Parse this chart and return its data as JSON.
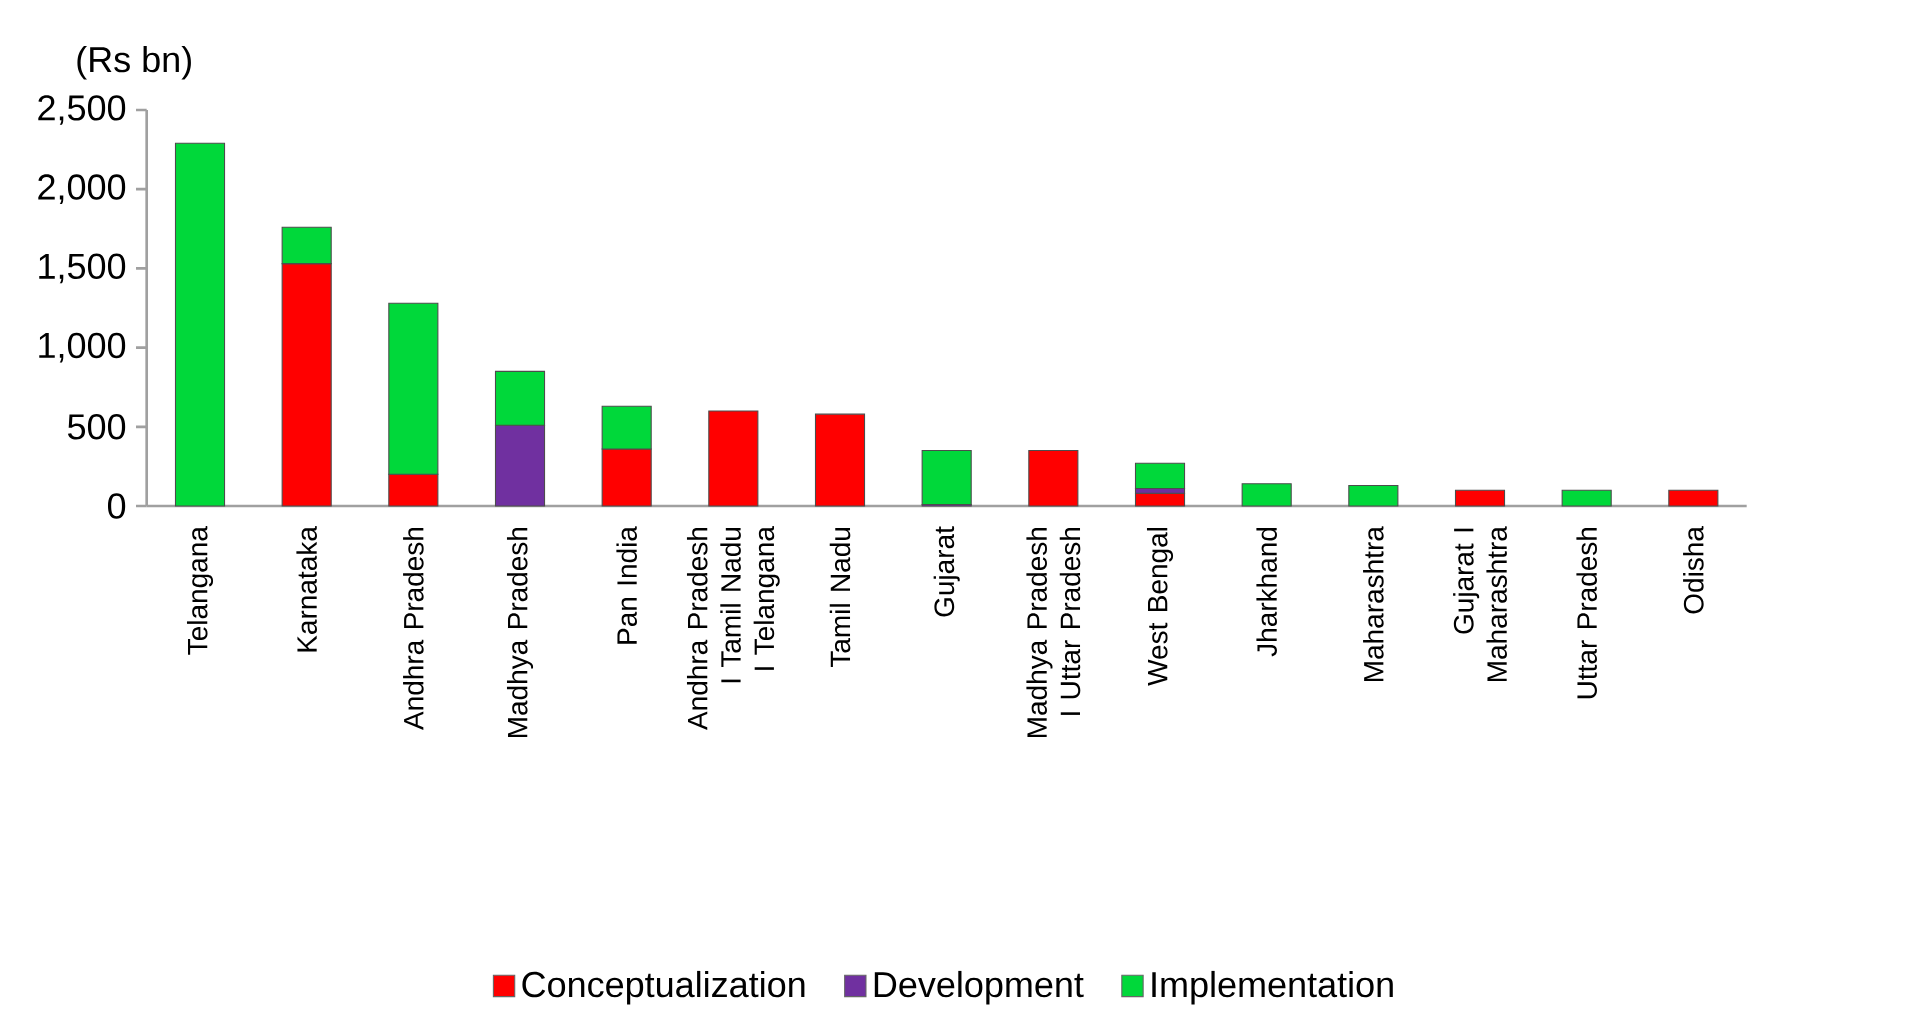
{
  "chart_data": {
    "type": "bar",
    "stacked": true,
    "ylabel": "(Rs bn)",
    "categories": [
      "Telangana",
      "Karnataka",
      "Andhra Pradesh",
      "Madhya Pradesh",
      "Pan India",
      "Andhra Pradesh I Tamil Nadu I Telangana",
      "Tamil Nadu",
      "Gujarat",
      "Madhya Pradesh I Uttar Pradesh",
      "West Bengal",
      "Jharkhand",
      "Maharashtra",
      "Gujarat I Maharashtra",
      "Uttar Pradesh",
      "Odisha"
    ],
    "series": [
      {
        "name": "Conceptualization",
        "color": "#ff0000",
        "values": [
          null,
          1530,
          200,
          null,
          360,
          600,
          580,
          null,
          350,
          80,
          null,
          null,
          100,
          null,
          100
        ]
      },
      {
        "name": "Development",
        "color": "#7030a0",
        "values": [
          null,
          null,
          null,
          510,
          null,
          null,
          null,
          10,
          null,
          30,
          null,
          null,
          null,
          null,
          null
        ]
      },
      {
        "name": "Implementation",
        "color": "#00d83a",
        "values": [
          2290,
          230,
          1080,
          340,
          270,
          null,
          null,
          340,
          null,
          160,
          140,
          130,
          null,
          100,
          null
        ]
      }
    ],
    "ylim": [
      0,
      2500
    ],
    "yticks": [
      0,
      500,
      {
        "value": 1000,
        "label": "1,000"
      },
      {
        "value": 1500,
        "label": "1,500"
      },
      {
        "value": 2000,
        "label": "2,000"
      },
      {
        "value": 2500,
        "label": "2,500"
      }
    ],
    "grid": false,
    "legend": "bottom"
  }
}
